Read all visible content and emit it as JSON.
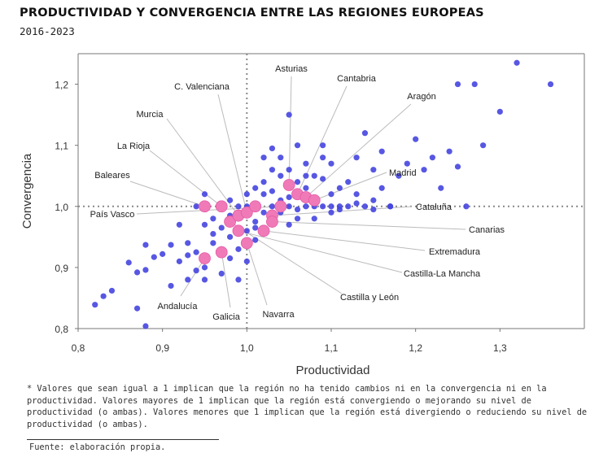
{
  "header": {
    "title": "PRODUCTIVIDAD Y CONVERGENCIA ENTRE LAS REGIONES EUROPEAS",
    "subtitle": "2016-2023"
  },
  "chart_data": {
    "type": "scatter",
    "xlabel": "Productividad",
    "ylabel": "Convergencia",
    "xlim": [
      0.8,
      1.4
    ],
    "ylim": [
      0.8,
      1.25
    ],
    "xticks": [
      "0,8",
      "0,9",
      "1,0",
      "1,1",
      "1,2",
      "1,3"
    ],
    "yticks": [
      "0,8",
      "0,9",
      "1,0",
      "1,1",
      "1,2"
    ],
    "reference_lines": {
      "x": 1.0,
      "y": 1.0,
      "style": "dotted"
    },
    "colors": {
      "regions": "#4545e0",
      "spain": "#f07ab8",
      "spain_stroke": "#e55aa5",
      "leader": "#bbbbbb",
      "grid": "#777777"
    },
    "series": [
      {
        "name": "",
        "points": [
          [
            0.82,
            0.839
          ],
          [
            0.83,
            0.853
          ],
          [
            0.84,
            0.862
          ],
          [
            0.86,
            0.908
          ],
          [
            0.87,
            0.892
          ],
          [
            0.87,
            0.833
          ],
          [
            0.88,
            0.937
          ],
          [
            0.88,
            0.804
          ],
          [
            0.88,
            0.896
          ],
          [
            0.89,
            0.917
          ],
          [
            0.9,
            0.922
          ],
          [
            0.91,
            0.937
          ],
          [
            0.91,
            0.87
          ],
          [
            0.92,
            0.91
          ],
          [
            0.93,
            0.94
          ],
          [
            0.93,
            0.88
          ],
          [
            0.94,
            0.925
          ],
          [
            0.94,
            1.0
          ],
          [
            0.95,
            1.02
          ],
          [
            0.95,
            0.97
          ],
          [
            0.95,
            0.9
          ],
          [
            0.96,
            0.98
          ],
          [
            0.96,
            0.955
          ],
          [
            0.97,
            0.93
          ],
          [
            0.97,
            1.0
          ],
          [
            0.97,
            0.89
          ],
          [
            0.98,
            0.95
          ],
          [
            0.98,
            0.915
          ],
          [
            0.98,
            1.01
          ],
          [
            0.99,
            0.93
          ],
          [
            0.99,
            0.965
          ],
          [
            0.99,
            0.88
          ],
          [
            1.0,
            0.96
          ],
          [
            1.0,
            0.91
          ],
          [
            1.0,
            1.0
          ],
          [
            1.0,
            0.985
          ],
          [
            1.01,
            1.03
          ],
          [
            1.01,
            0.975
          ],
          [
            1.01,
            0.945
          ],
          [
            1.02,
            1.02
          ],
          [
            1.02,
            0.99
          ],
          [
            1.02,
            0.96
          ],
          [
            1.03,
            1.06
          ],
          [
            1.03,
            1.0
          ],
          [
            1.03,
            0.98
          ],
          [
            1.04,
            1.08
          ],
          [
            1.04,
            1.05
          ],
          [
            1.04,
            1.01
          ],
          [
            1.04,
            0.99
          ],
          [
            1.05,
            1.15
          ],
          [
            1.05,
            1.06
          ],
          [
            1.05,
            1.0
          ],
          [
            1.05,
            0.97
          ],
          [
            1.06,
            1.1
          ],
          [
            1.06,
            1.04
          ],
          [
            1.06,
            1.02
          ],
          [
            1.06,
            0.995
          ],
          [
            1.07,
            1.07
          ],
          [
            1.07,
            1.03
          ],
          [
            1.07,
            1.0
          ],
          [
            1.08,
            1.05
          ],
          [
            1.08,
            1.01
          ],
          [
            1.08,
            0.98
          ],
          [
            1.09,
            1.1
          ],
          [
            1.09,
            1.045
          ],
          [
            1.09,
            1.0
          ],
          [
            1.1,
            1.07
          ],
          [
            1.1,
            1.02
          ],
          [
            1.1,
            0.99
          ],
          [
            1.11,
            1.03
          ],
          [
            1.11,
            1.0
          ],
          [
            1.12,
            1.04
          ],
          [
            1.12,
            1.0
          ],
          [
            1.13,
            1.08
          ],
          [
            1.13,
            1.02
          ],
          [
            1.14,
            1.12
          ],
          [
            1.14,
            1.0
          ],
          [
            1.15,
            1.06
          ],
          [
            1.15,
            1.01
          ],
          [
            1.16,
            1.09
          ],
          [
            1.16,
            1.03
          ],
          [
            1.17,
            1.0
          ],
          [
            1.18,
            1.05
          ],
          [
            1.19,
            1.07
          ],
          [
            1.2,
            1.11
          ],
          [
            1.21,
            1.06
          ],
          [
            1.22,
            1.08
          ],
          [
            1.23,
            1.03
          ],
          [
            1.24,
            1.09
          ],
          [
            1.25,
            1.2
          ],
          [
            1.25,
            1.065
          ],
          [
            1.27,
            1.2
          ],
          [
            1.28,
            1.1
          ],
          [
            1.3,
            1.155
          ],
          [
            1.32,
            1.235
          ],
          [
            1.36,
            1.2
          ],
          [
            1.26,
            1.0
          ],
          [
            0.94,
            0.895
          ],
          [
            0.96,
            0.94
          ],
          [
            0.97,
            0.965
          ],
          [
            0.98,
            0.985
          ],
          [
            0.99,
            1.0
          ],
          [
            1.0,
            1.02
          ],
          [
            1.01,
            1.0
          ],
          [
            1.02,
            1.04
          ],
          [
            1.03,
            1.025
          ],
          [
            1.04,
            1.0
          ],
          [
            1.05,
            1.035
          ],
          [
            1.06,
            0.98
          ],
          [
            1.07,
            1.05
          ],
          [
            1.08,
            1.0
          ],
          [
            1.09,
            1.08
          ],
          [
            1.1,
            1.0
          ],
          [
            0.92,
            0.97
          ],
          [
            0.93,
            0.92
          ],
          [
            0.95,
            0.88
          ],
          [
            1.0,
            0.945
          ],
          [
            0.99,
            0.98
          ],
          [
            1.01,
            0.965
          ],
          [
            1.02,
            1.08
          ],
          [
            1.03,
            1.095
          ],
          [
            1.05,
            1.015
          ],
          [
            1.11,
            0.995
          ],
          [
            1.13,
            1.005
          ],
          [
            1.15,
            0.995
          ],
          [
            1.17,
            1.0
          ]
        ]
      },
      {
        "name": "",
        "points": [
          [
            0.95,
            1.0
          ],
          [
            0.97,
            1.0
          ],
          [
            0.98,
            0.975
          ],
          [
            0.99,
            0.96
          ],
          [
            0.99,
            0.985
          ],
          [
            1.0,
            0.99
          ],
          [
            1.01,
            1.0
          ],
          [
            1.02,
            0.96
          ],
          [
            1.03,
            0.985
          ],
          [
            1.03,
            0.975
          ],
          [
            1.04,
            1.0
          ],
          [
            1.05,
            1.035
          ],
          [
            1.06,
            1.02
          ],
          [
            1.07,
            1.015
          ],
          [
            1.08,
            1.01
          ],
          [
            0.95,
            0.915
          ],
          [
            0.97,
            0.925
          ],
          [
            1.0,
            0.94
          ]
        ]
      }
    ],
    "annotations": [
      {
        "label": "Asturias",
        "point": [
          1.05,
          1.035
        ]
      },
      {
        "label": "Cantabria",
        "point": [
          1.06,
          1.02
        ]
      },
      {
        "label": "Aragón",
        "point": [
          1.07,
          1.015
        ]
      },
      {
        "label": "C. Valenciana",
        "point": [
          1.0,
          0.99
        ]
      },
      {
        "label": "Murcia",
        "point": [
          0.99,
          0.985
        ]
      },
      {
        "label": "La Rioja",
        "point": [
          0.97,
          1.0
        ]
      },
      {
        "label": "Baleares",
        "point": [
          0.95,
          1.0
        ]
      },
      {
        "label": "País Vasco",
        "point": [
          1.04,
          1.0
        ]
      },
      {
        "label": "Madrid",
        "point": [
          1.08,
          1.01
        ]
      },
      {
        "label": "Cataluña",
        "point": [
          1.03,
          0.985
        ]
      },
      {
        "label": "Canarias",
        "point": [
          1.03,
          0.975
        ]
      },
      {
        "label": "Extremadura",
        "point": [
          1.02,
          0.96
        ]
      },
      {
        "label": "Castilla-La Mancha",
        "point": [
          0.99,
          0.96
        ]
      },
      {
        "label": "Castilla y León",
        "point": [
          0.98,
          0.975
        ]
      },
      {
        "label": "Andalucía",
        "point": [
          0.95,
          0.915
        ]
      },
      {
        "label": "Galicia",
        "point": [
          0.97,
          0.925
        ]
      },
      {
        "label": "Navarra",
        "point": [
          1.0,
          0.94
        ]
      }
    ]
  },
  "footnote": "* Valores que sean igual a 1 implican que la región no ha tenido cambios ni en la convergencia ni en la productividad. Valores mayores de 1 implican que la región está convergiendo o mejorando su nivel de productividad (o ambas). Valores menores que 1 implican que la región está divergiendo o reduciendo su nivel de productividad (o ambas).",
  "source": "Fuente: elaboración propia."
}
